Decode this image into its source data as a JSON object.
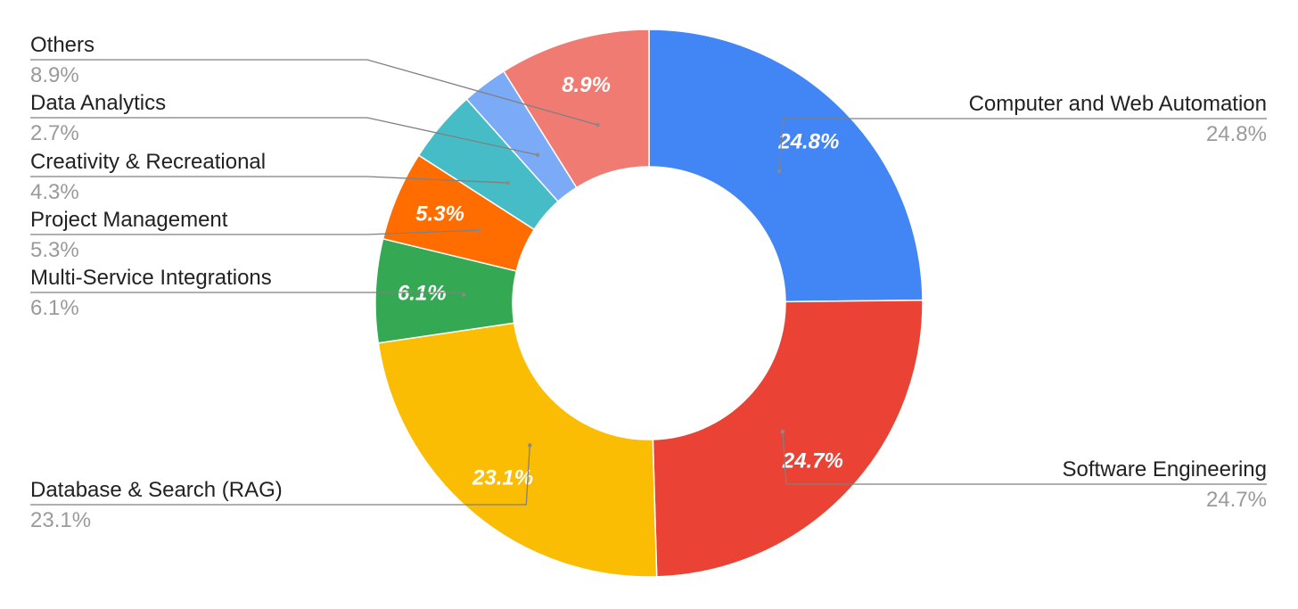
{
  "chart_data": {
    "type": "pie",
    "donut": true,
    "series": [
      {
        "name": "Computer and Web Automation",
        "value": 24.8,
        "label": "24.8%",
        "color": "#4285F4",
        "side": "right",
        "show_inner_label": true
      },
      {
        "name": "Software Engineering",
        "value": 24.7,
        "label": "24.7%",
        "color": "#EA4335",
        "side": "right",
        "show_inner_label": true
      },
      {
        "name": "Database & Search (RAG)",
        "value": 23.1,
        "label": "23.1%",
        "color": "#FBBC04",
        "side": "left",
        "show_inner_label": true
      },
      {
        "name": "Multi-Service Integrations",
        "value": 6.1,
        "label": "6.1%",
        "color": "#34A853",
        "side": "left",
        "show_inner_label": true
      },
      {
        "name": "Project Management",
        "value": 5.3,
        "label": "5.3%",
        "color": "#FF6D01",
        "side": "left",
        "show_inner_label": true
      },
      {
        "name": "Creativity & Recreational",
        "value": 4.3,
        "label": "4.3%",
        "color": "#46BDC6",
        "side": "left",
        "show_inner_label": false
      },
      {
        "name": "Data Analytics",
        "value": 2.7,
        "label": "2.7%",
        "color": "#7BAAF7",
        "side": "left",
        "show_inner_label": false
      },
      {
        "name": "Others",
        "value": 8.9,
        "label": "8.9%",
        "color": "#F07B72",
        "side": "left",
        "show_inner_label": true
      }
    ],
    "start_angle": "12 o'clock",
    "direction": "clockwise",
    "legend": "leader-lines"
  }
}
